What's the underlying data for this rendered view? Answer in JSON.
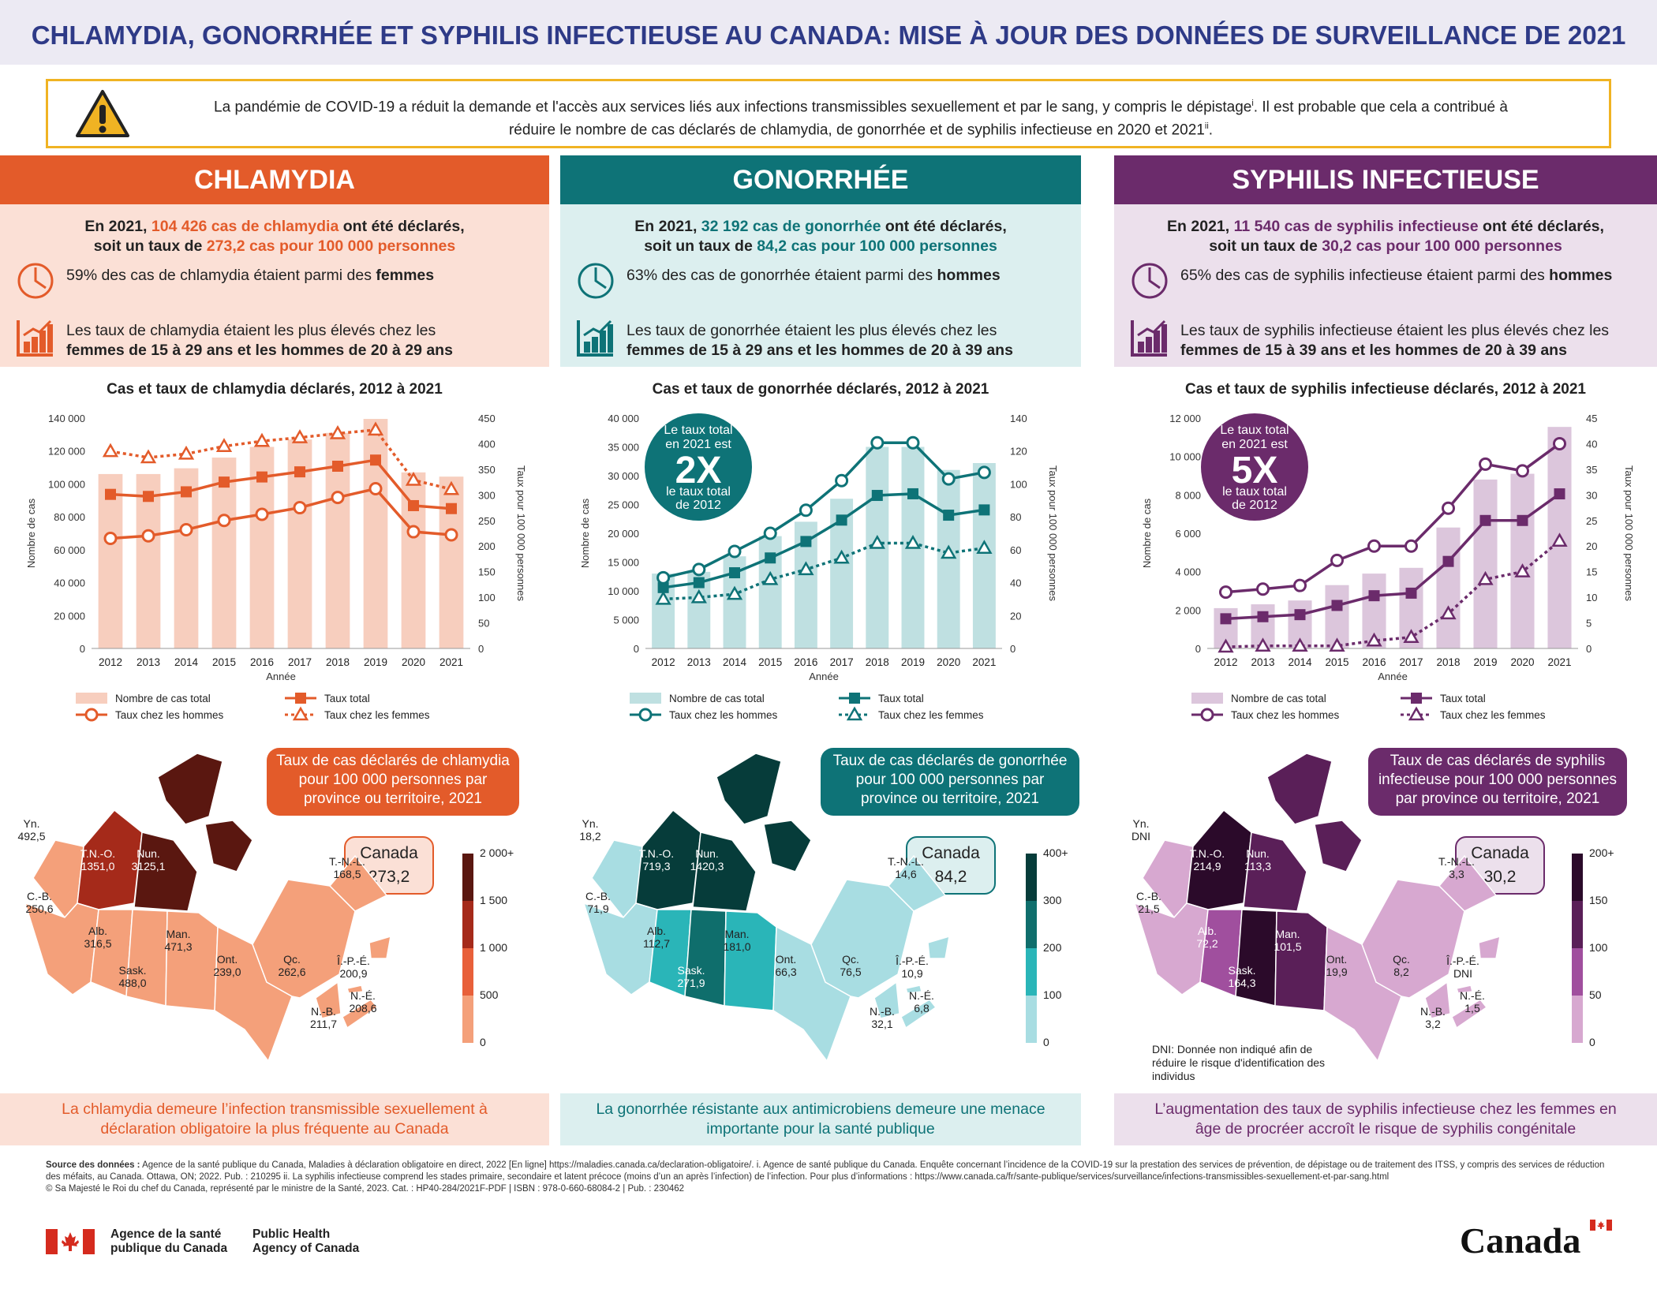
{
  "title": "CHLAMYDIA, GONORRHÉE ET SYPHILIS INFECTIEUSE AU CANADA: MISE À JOUR DES DONNÉES DE SURVEILLANCE DE 2021",
  "warning": {
    "line1": "La pandémie de COVID-19 a réduit la demande et l'accès aux services liés aux infections transmissibles sexuellement et par le sang, y compris le dépistage",
    "sup1": "i",
    "line1b": ". Il est probable que cela a contribué à",
    "line2": "réduire le nombre de cas déclarés de chlamydia, de gonorrhée et de syphilis infectieuse en 2020 et 2021",
    "sup2": "ii",
    "line2b": "."
  },
  "colors": {
    "chlamydia": "#e35b2a",
    "gonorrhee": "#0e7377",
    "syphilis": "#6b2b6b",
    "warning_border": "#f0b323",
    "title": "#2e3a87"
  },
  "sections": [
    {
      "id": "chlamydia",
      "heading": "CHLAMYDIA",
      "lead_a": "En 2021, ",
      "lead_hl1": "104 426 cas de chlamydia",
      "lead_b": " ont été déclarés,",
      "lead_c": "soit un taux de ",
      "lead_hl2": "273,2 cas pour 100 000 personnes",
      "stat1_a": "59% des cas de chlamydia étaient parmi des ",
      "stat1_b": "femmes",
      "stat2_a": "Les taux de chlamydia étaient les plus élevés chez les",
      "stat2_b": "femmes de 15 à 29 ans et les hommes de 20 à 29 ans",
      "chart_title": "Cas et taux de chlamydia déclarés, 2012 à 2021",
      "callout": "Taux de cas déclarés de chlamydia pour 100 000 personnes par province ou territoire, 2021",
      "canada_label": "Canada",
      "canada_value": "273,2",
      "scale": [
        "2 000+",
        "1 500",
        "1 000",
        "500",
        "0"
      ],
      "provinces": [
        {
          "name": "Yn.",
          "value": "492,5",
          "color": "#f4a07a"
        },
        {
          "name": "T.N.-O.",
          "value": "1351,0",
          "color": "#a52a1a"
        },
        {
          "name": "Nun.",
          "value": "3125,1",
          "color": "#5a1710"
        },
        {
          "name": "C.-B.",
          "value": "250,6",
          "color": "#f4a07a"
        },
        {
          "name": "Alb.",
          "value": "316,5",
          "color": "#f4a07a"
        },
        {
          "name": "Sask.",
          "value": "488,0",
          "color": "#f4a07a"
        },
        {
          "name": "Man.",
          "value": "471,3",
          "color": "#f4a07a"
        },
        {
          "name": "Ont.",
          "value": "239,0",
          "color": "#f4a07a"
        },
        {
          "name": "Qc.",
          "value": "262,6",
          "color": "#f4a07a"
        },
        {
          "name": "T.-N.-L.",
          "value": "168,5",
          "color": "#f4a07a"
        },
        {
          "name": "Î.-P.-É.",
          "value": "200,9",
          "color": "#f4a07a"
        },
        {
          "name": "N.-É.",
          "value": "208,6",
          "color": "#f4a07a"
        },
        {
          "name": "N.-B.",
          "value": "211,7",
          "color": "#f4a07a"
        }
      ],
      "footer": "La chlamydia demeure l’infection transmissible sexuellement à déclaration obligatoire la plus fréquente au Canada"
    },
    {
      "id": "gonorrhee",
      "heading": "GONORRHÉE",
      "lead_a": "En 2021, ",
      "lead_hl1": "32 192 cas de gonorrhée",
      "lead_b": " ont été déclarés,",
      "lead_c": "soit un taux de ",
      "lead_hl2": "84,2 cas pour 100 000 personnes",
      "stat1_a": "63% des cas de gonorrhée étaient parmi des ",
      "stat1_b": "hommes",
      "stat2_a": "Les taux de gonorrhée étaient les plus élevés chez les",
      "stat2_b": "femmes de 15 à 29 ans et les hommes de 20 à 39 ans",
      "chart_title": "Cas et taux de gonorrhée déclarés, 2012 à 2021",
      "badge": {
        "top": "Le taux total en 2021 est",
        "big": "2X",
        "bottom": "le taux total de 2012"
      },
      "callout": "Taux de cas déclarés de gonorrhée pour 100 000 personnes par province ou territoire, 2021",
      "canada_label": "Canada",
      "canada_value": "84,2",
      "scale": [
        "400+",
        "300",
        "200",
        "100",
        "0"
      ],
      "provinces": [
        {
          "name": "Yn.",
          "value": "18,2",
          "color": "#a8dde2"
        },
        {
          "name": "T.N.-O.",
          "value": "719,3",
          "color": "#063c3a"
        },
        {
          "name": "Nun.",
          "value": "1420,3",
          "color": "#063c3a"
        },
        {
          "name": "C.-B.",
          "value": "71,9",
          "color": "#a8dde2"
        },
        {
          "name": "Alb.",
          "value": "112,7",
          "color": "#2ab5b8"
        },
        {
          "name": "Sask.",
          "value": "271,9",
          "color": "#0f6e6c"
        },
        {
          "name": "Man.",
          "value": "181,0",
          "color": "#2ab5b8"
        },
        {
          "name": "Ont.",
          "value": "66,3",
          "color": "#a8dde2"
        },
        {
          "name": "Qc.",
          "value": "76,5",
          "color": "#a8dde2"
        },
        {
          "name": "T.-N.-L.",
          "value": "14,6",
          "color": "#a8dde2"
        },
        {
          "name": "Î.-P.-É.",
          "value": "10,9",
          "color": "#a8dde2"
        },
        {
          "name": "N.-É.",
          "value": "6,8",
          "color": "#a8dde2"
        },
        {
          "name": "N.-B.",
          "value": "32,1",
          "color": "#a8dde2"
        }
      ],
      "footer": "La gonorrhée résistante aux antimicrobiens demeure une menace importante pour la santé publique"
    },
    {
      "id": "syphilis",
      "heading": "SYPHILIS INFECTIEUSE",
      "lead_a": "En 2021, ",
      "lead_hl1": "11 540 cas de syphilis infectieuse",
      "lead_b": " ont été déclarés,",
      "lead_c": "soit un taux de ",
      "lead_hl2": "30,2 cas pour 100 000 personnes",
      "stat1_a": "65% des cas de syphilis infectieuse étaient parmi des ",
      "stat1_b": "hommes",
      "stat2_a": "Les taux de syphilis infectieuse étaient les plus élevés chez les ",
      "stat2_b": "femmes de 15 à 39 ans et les hommes de 20 à 39 ans",
      "chart_title": "Cas et taux de syphilis infectieuse déclarés, 2012 à 2021",
      "badge": {
        "top": "Le taux total en 2021 est",
        "big": "5X",
        "bottom": "le taux total de 2012"
      },
      "callout": "Taux de cas déclarés de syphilis infectieuse pour 100 000 personnes par province ou territoire, 2021",
      "canada_label": "Canada",
      "canada_value": "30,2",
      "scale": [
        "200+",
        "150",
        "100",
        "50",
        "0"
      ],
      "dni": "DNI: Donnée non indiqué afin de réduire le risque d'identification des individus",
      "provinces": [
        {
          "name": "Yn.",
          "value": "DNI",
          "color": "#d7a8d0"
        },
        {
          "name": "T.N.-O.",
          "value": "214,9",
          "color": "#2b0a2a"
        },
        {
          "name": "Nun.",
          "value": "113,3",
          "color": "#5a1f58"
        },
        {
          "name": "C.-B.",
          "value": "21,5",
          "color": "#d7a8d0"
        },
        {
          "name": "Alb.",
          "value": "72,2",
          "color": "#a04f9e"
        },
        {
          "name": "Sask.",
          "value": "164,3",
          "color": "#2b0a2a"
        },
        {
          "name": "Man.",
          "value": "101,5",
          "color": "#5a1f58"
        },
        {
          "name": "Ont.",
          "value": "19,9",
          "color": "#d7a8d0"
        },
        {
          "name": "Qc.",
          "value": "8,2",
          "color": "#d7a8d0"
        },
        {
          "name": "T.-N.-L.",
          "value": "3,3",
          "color": "#d7a8d0"
        },
        {
          "name": "Î.-P.-É.",
          "value": "DNI",
          "color": "#d7a8d0"
        },
        {
          "name": "N.-É.",
          "value": "1,5",
          "color": "#d7a8d0"
        },
        {
          "name": "N.-B.",
          "value": "3,2",
          "color": "#d7a8d0"
        }
      ],
      "footer": "L’augmentation des taux de syphilis infectieuse chez les femmes en âge de procréer accroît le risque de syphilis congénitale"
    }
  ],
  "chart_data": [
    {
      "type": "bar+line",
      "title": "Cas et taux de chlamydia déclarés, 2012 à 2021",
      "categories": [
        "2012",
        "2013",
        "2014",
        "2015",
        "2016",
        "2017",
        "2018",
        "2019",
        "2020",
        "2021"
      ],
      "xlabel": "Année",
      "ylabel": "Nombre de cas",
      "y2label": "Taux pour 100 000 personnes",
      "ylim": [
        0,
        140000
      ],
      "yticks": [
        "0",
        "20 000",
        "40 000",
        "60 000",
        "80 000",
        "100 000",
        "120 000",
        "140 000"
      ],
      "y2lim": [
        0,
        450
      ],
      "y2ticks": [
        "0",
        "50",
        "100",
        "150",
        "200",
        "250",
        "300",
        "350",
        "400",
        "450"
      ],
      "bars": {
        "name": "Nombre de cas total",
        "values": [
          106000,
          106000,
          109500,
          116000,
          122500,
          127000,
          131000,
          139500,
          107000,
          104426
        ]
      },
      "series": [
        {
          "name": "Taux total",
          "values": [
            301,
            297,
            306,
            325,
            335,
            345,
            356,
            368,
            279,
            273.2
          ]
        },
        {
          "name": "Taux chez les hommes",
          "values": [
            215,
            220,
            232,
            250,
            262,
            275,
            295,
            312,
            228,
            222
          ]
        },
        {
          "name": "Taux chez les femmes",
          "values": [
            385,
            373,
            380,
            395,
            405,
            412,
            420,
            427,
            329,
            311
          ]
        }
      ],
      "legend": [
        "Nombre de cas total",
        "Taux total",
        "Taux chez les hommes",
        "Taux chez les femmes"
      ]
    },
    {
      "type": "bar+line",
      "title": "Cas et taux de gonorrhée déclarés, 2012 à 2021",
      "categories": [
        "2012",
        "2013",
        "2014",
        "2015",
        "2016",
        "2017",
        "2018",
        "2019",
        "2020",
        "2021"
      ],
      "xlabel": "Année",
      "ylabel": "Nombre de cas",
      "y2label": "Taux pour 100 000 personnes",
      "ylim": [
        0,
        40000
      ],
      "yticks": [
        "0",
        "5 000",
        "10 000",
        "15 000",
        "20 000",
        "25 000",
        "30 000",
        "35 000",
        "40 000"
      ],
      "y2lim": [
        0,
        140
      ],
      "y2ticks": [
        "0",
        "20",
        "40",
        "60",
        "80",
        "100",
        "120",
        "140"
      ],
      "bars": {
        "name": "Nombre de cas total",
        "values": [
          13000,
          13300,
          16000,
          19500,
          22000,
          26000,
          35000,
          35000,
          31000,
          32192
        ]
      },
      "series": [
        {
          "name": "Taux total",
          "values": [
            37,
            40,
            46,
            55,
            65,
            78,
            93,
            94,
            81,
            84.2
          ]
        },
        {
          "name": "Taux chez les hommes",
          "values": [
            43,
            48,
            59,
            70,
            84,
            102,
            125,
            125,
            103,
            107
          ]
        },
        {
          "name": "Taux chez les femmes",
          "values": [
            30,
            31,
            33,
            42,
            48,
            55,
            64,
            64,
            58,
            61
          ]
        }
      ],
      "legend": [
        "Nombre de cas total",
        "Taux total",
        "Taux chez les hommes",
        "Taux chez les femmes"
      ]
    },
    {
      "type": "bar+line",
      "title": "Cas et taux de syphilis infectieuse déclarés, 2012 à 2021",
      "categories": [
        "2012",
        "2013",
        "2014",
        "2015",
        "2016",
        "2017",
        "2018",
        "2019",
        "2020",
        "2021"
      ],
      "xlabel": "Année",
      "ylabel": "Nombre de cas",
      "y2label": "Taux pour 100 000 personnes",
      "ylim": [
        0,
        12000
      ],
      "yticks": [
        "0",
        "2 000",
        "4 000",
        "6 000",
        "8 000",
        "10 000",
        "12 000"
      ],
      "y2lim": [
        0,
        45
      ],
      "y2ticks": [
        "0",
        "5",
        "10",
        "15",
        "20",
        "25",
        "30",
        "35",
        "40",
        "45"
      ],
      "bars": {
        "name": "Nombre de cas total",
        "values": [
          2100,
          2300,
          2500,
          3300,
          3900,
          4200,
          6300,
          8800,
          9100,
          11540
        ]
      },
      "series": [
        {
          "name": "Taux total",
          "values": [
            5.8,
            6.2,
            6.6,
            8.4,
            10.3,
            10.8,
            17,
            25,
            25,
            30.2
          ]
        },
        {
          "name": "Taux chez les hommes",
          "values": [
            11,
            11.6,
            12.3,
            17.2,
            20,
            20,
            27.4,
            36,
            34.7,
            40
          ]
        },
        {
          "name": "Taux chez les femmes",
          "values": [
            0.3,
            0.5,
            0.5,
            0.5,
            1.5,
            2.2,
            6.8,
            13.5,
            15,
            21
          ]
        }
      ],
      "legend": [
        "Nombre de cas total",
        "Taux total",
        "Taux chez les hommes",
        "Taux chez les femmes"
      ]
    }
  ],
  "sources": {
    "label": "Source des données :",
    "text": " Agence de la santé publique du Canada, Maladies à déclaration obligatoire en direct, 2022 [En ligne] https://maladies.canada.ca/declaration-obligatoire/. i. Agence de santé publique du Canada. Enquête concernant l’incidence de la COVID-19 sur la prestation des services de prévention, de dépistage ou de traitement des ITSS, y compris des services de réduction des méfaits, au Canada. Ottawa, ON; 2022. Pub. : 210295 ii. La syphilis infectieuse comprend les stades primaire, secondaire et latent précoce (moins d’un an après l’infection) de l’infection. Pour plus d’informations : https://www.canada.ca/fr/sante-publique/services/surveillance/infections-transmissibles-sexuellement-et-par-sang.html",
    "copyright": "© Sa Majesté le Roi du chef du Canada, représenté par le ministre de la Santé, 2023. Cat. : HP40-284/2021F-PDF | ISBN : 978-0-660-68084-2 | Pub. : 230462"
  },
  "logo": {
    "fr1": "Agence de la santé",
    "fr2": "publique du Canada",
    "en1": "Public Health",
    "en2": "Agency of Canada",
    "wordmark": "Canada"
  }
}
